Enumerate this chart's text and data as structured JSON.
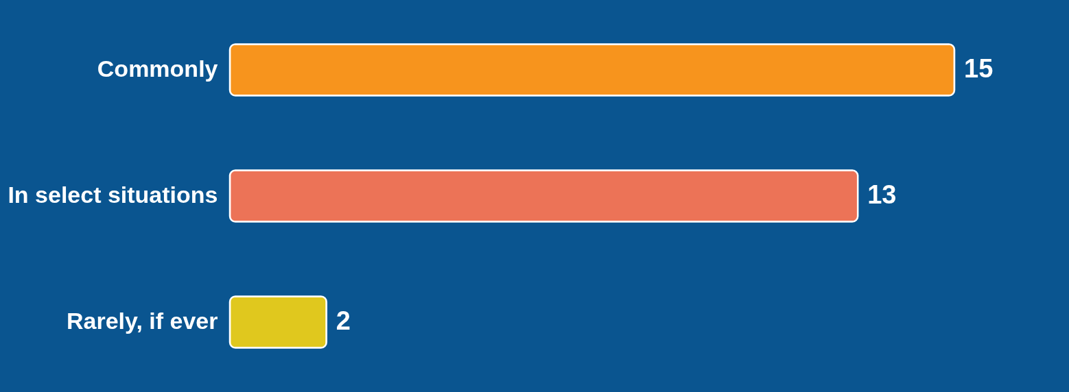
{
  "chart_data": {
    "type": "bar",
    "orientation": "horizontal",
    "categories": [
      "Commonly",
      "In select situations",
      "Rarely, if ever"
    ],
    "values": [
      15,
      13,
      2
    ],
    "colors": [
      "#f7941d",
      "#ec7357",
      "#e0c81e"
    ],
    "data_labels": true,
    "grid": false,
    "legend": false
  }
}
